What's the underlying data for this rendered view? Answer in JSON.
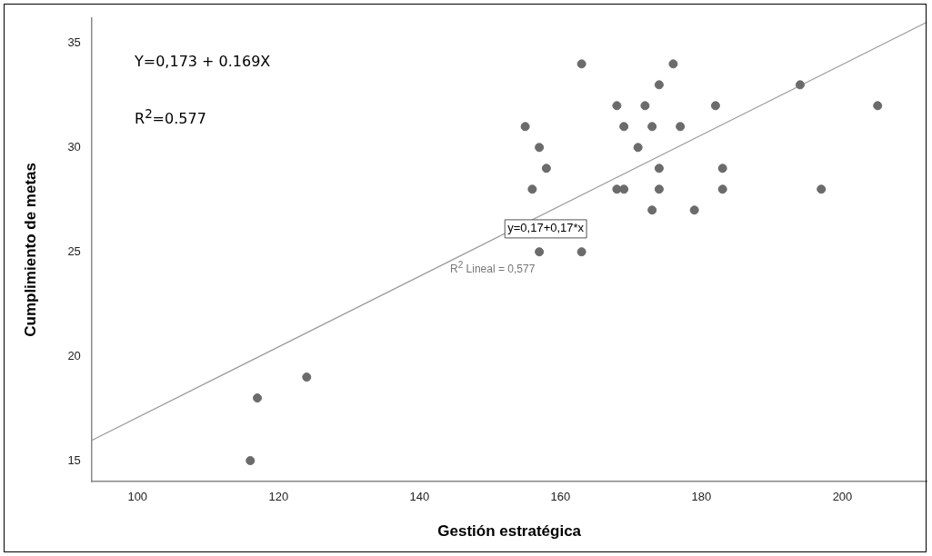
{
  "chart_data": {
    "type": "scatter",
    "xlabel": "Gestión estratégica",
    "ylabel": "Cumplimiento de metas",
    "xlim": [
      93.5,
      212
    ],
    "ylim": [
      14,
      36.2
    ],
    "xticks": [
      100,
      120,
      140,
      160,
      180,
      200
    ],
    "yticks": [
      15,
      20,
      25,
      30,
      35
    ],
    "grid": false,
    "legend": false,
    "marker": "circle",
    "series": [
      {
        "color": "#6b6b6b",
        "x": [
          163,
          176,
          174,
          194,
          168,
          172,
          182,
          205,
          155,
          169,
          173,
          177,
          157,
          171,
          158,
          174,
          183,
          156,
          168,
          169,
          174,
          183,
          197,
          173,
          179,
          157,
          163,
          116,
          117,
          124
        ],
        "values": [
          34,
          34,
          33,
          33,
          32,
          32,
          32,
          32,
          31,
          31,
          31,
          31,
          30,
          30,
          29,
          29,
          29,
          28,
          28,
          28,
          28,
          28,
          28,
          27,
          27,
          25,
          25,
          15,
          18,
          19
        ]
      },
      {
        "type": "line",
        "color": "#999999",
        "x": [
          93.5,
          212
        ],
        "values": [
          15.97,
          36.0
        ],
        "marker": "none"
      }
    ],
    "annotations": [
      "Y=0,173 + 0.169X",
      "R$^{2}$=0.577",
      {
        "text": "y=0,17+0,17*x",
        "x": 152.5,
        "y": 26.1
      },
      "R$^{2}$ Lineal = 0,577"
    ]
  }
}
